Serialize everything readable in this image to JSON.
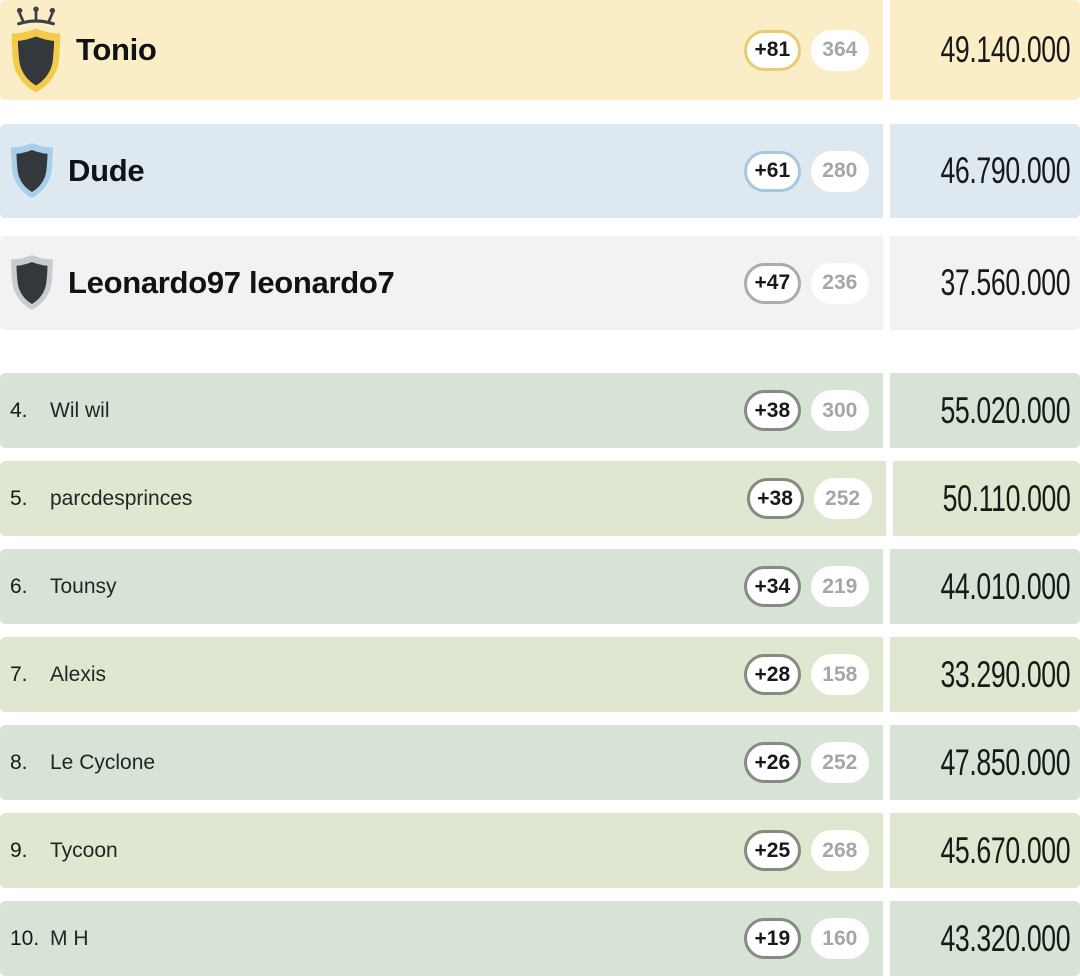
{
  "board": {
    "rows": [
      {
        "rank_label": "",
        "name": "Tonio",
        "gain": "+81",
        "count": "364",
        "value": "49.140.000",
        "tier": "gold",
        "shield": true,
        "crown": true
      },
      {
        "rank_label": "",
        "name": "Dude",
        "gain": "+61",
        "count": "280",
        "value": "46.790.000",
        "tier": "blue",
        "shield": true,
        "crown": false
      },
      {
        "rank_label": "",
        "name": "Leonardo97 leonardo7",
        "gain": "+47",
        "count": "236",
        "value": "37.560.000",
        "tier": "silver",
        "shield": true,
        "crown": false
      },
      {
        "rank_label": "4.",
        "name": "Wil wil",
        "gain": "+38",
        "count": "300",
        "value": "55.020.000",
        "tier": "mint",
        "shield": false,
        "crown": false
      },
      {
        "rank_label": "5.",
        "name": "parcdesprinces",
        "gain": "+38",
        "count": "252",
        "value": "50.110.000",
        "tier": "sage",
        "shield": false,
        "crown": false
      },
      {
        "rank_label": "6.",
        "name": "Tounsy",
        "gain": "+34",
        "count": "219",
        "value": "44.010.000",
        "tier": "mint",
        "shield": false,
        "crown": false
      },
      {
        "rank_label": "7.",
        "name": "Alexis",
        "gain": "+28",
        "count": "158",
        "value": "33.290.000",
        "tier": "sage",
        "shield": false,
        "crown": false
      },
      {
        "rank_label": "8.",
        "name": "Le Cyclone",
        "gain": "+26",
        "count": "252",
        "value": "47.850.000",
        "tier": "mint",
        "shield": false,
        "crown": false
      },
      {
        "rank_label": "9.",
        "name": "Tycoon",
        "gain": "+25",
        "count": "268",
        "value": "45.670.000",
        "tier": "sage",
        "shield": false,
        "crown": false
      },
      {
        "rank_label": "10.",
        "name": "M H",
        "gain": "+19",
        "count": "160",
        "value": "43.320.000",
        "tier": "mint",
        "shield": false,
        "crown": false
      }
    ],
    "colors": {
      "gold_bg": "#FBEEC7",
      "gold_border": "#E7CC72",
      "shield_gold": "#F3CB4B",
      "blue_bg": "#DDE8F0",
      "blue_border": "#A5C9DF",
      "shield_blue": "#A9CEE9",
      "silver_bg": "#F0F2F3",
      "silver_border": "#ACACAC",
      "shield_silver": "#C9CCCE",
      "sage_bg": "#DFE7D0",
      "mint_bg": "#D6E3D5",
      "green_border": "#848B81",
      "count_text": "#A4A7A5",
      "dark_text": "#17191B",
      "value_text": "#17191B",
      "shield_inner": "#34383C",
      "crown": "#3E4245",
      "divider": "#FFFFFF"
    }
  }
}
